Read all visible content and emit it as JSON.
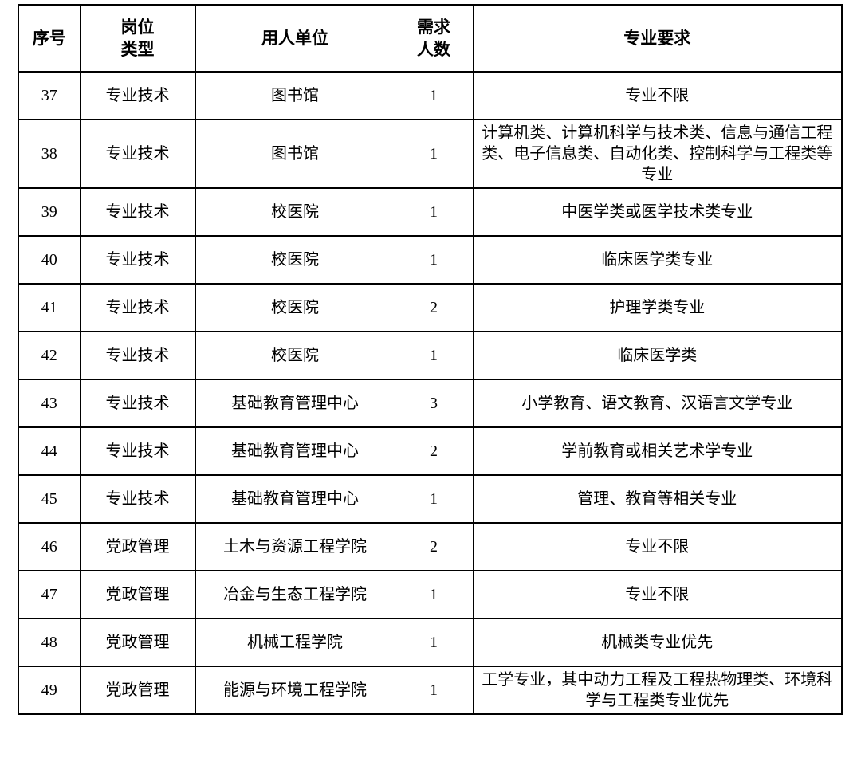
{
  "table": {
    "columns": [
      {
        "key": "seq",
        "label": "序号"
      },
      {
        "key": "post_type",
        "label": "岗位\n类型"
      },
      {
        "key": "employer",
        "label": "用人单位"
      },
      {
        "key": "headcount",
        "label": "需求\n人数"
      },
      {
        "key": "major_requirement",
        "label": "专业要求"
      }
    ],
    "rows": [
      {
        "seq": "37",
        "post_type": "专业技术",
        "employer": "图书馆",
        "headcount": "1",
        "major_requirement": "专业不限"
      },
      {
        "seq": "38",
        "post_type": "专业技术",
        "employer": "图书馆",
        "headcount": "1",
        "major_requirement": "计算机类、计算机科学与技术类、信息与通信工程类、电子信息类、自动化类、控制科学与工程类等专业"
      },
      {
        "seq": "39",
        "post_type": "专业技术",
        "employer": "校医院",
        "headcount": "1",
        "major_requirement": "中医学类或医学技术类专业"
      },
      {
        "seq": "40",
        "post_type": "专业技术",
        "employer": "校医院",
        "headcount": "1",
        "major_requirement": "临床医学类专业"
      },
      {
        "seq": "41",
        "post_type": "专业技术",
        "employer": "校医院",
        "headcount": "2",
        "major_requirement": "护理学类专业"
      },
      {
        "seq": "42",
        "post_type": "专业技术",
        "employer": "校医院",
        "headcount": "1",
        "major_requirement": "临床医学类"
      },
      {
        "seq": "43",
        "post_type": "专业技术",
        "employer": "基础教育管理中心",
        "headcount": "3",
        "major_requirement": "小学教育、语文教育、汉语言文学专业"
      },
      {
        "seq": "44",
        "post_type": "专业技术",
        "employer": "基础教育管理中心",
        "headcount": "2",
        "major_requirement": "学前教育或相关艺术学专业"
      },
      {
        "seq": "45",
        "post_type": "专业技术",
        "employer": "基础教育管理中心",
        "headcount": "1",
        "major_requirement": "管理、教育等相关专业"
      },
      {
        "seq": "46",
        "post_type": "党政管理",
        "employer": "土木与资源工程学院",
        "headcount": "2",
        "major_requirement": "专业不限"
      },
      {
        "seq": "47",
        "post_type": "党政管理",
        "employer": "冶金与生态工程学院",
        "headcount": "1",
        "major_requirement": "专业不限"
      },
      {
        "seq": "48",
        "post_type": "党政管理",
        "employer": "机械工程学院",
        "headcount": "1",
        "major_requirement": "机械类专业优先"
      },
      {
        "seq": "49",
        "post_type": "党政管理",
        "employer": "能源与环境工程学院",
        "headcount": "1",
        "major_requirement": "工学专业，其中动力工程及工程热物理类、环境科学与工程类专业优先"
      }
    ]
  }
}
